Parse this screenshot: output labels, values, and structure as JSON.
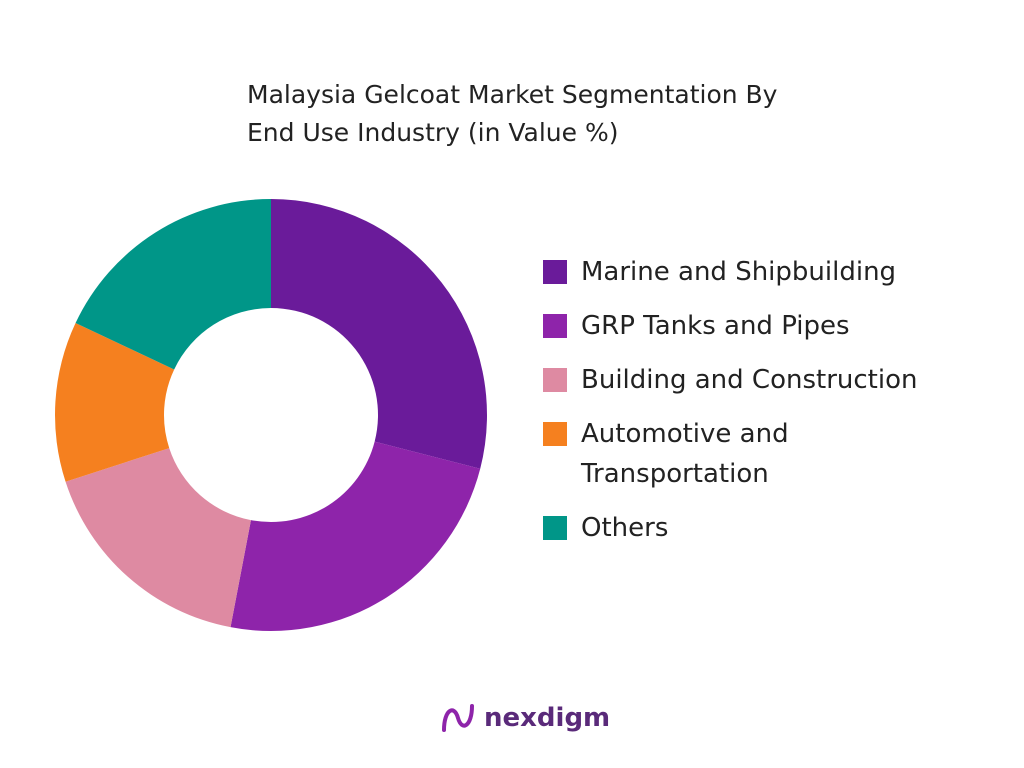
{
  "chart_data": {
    "type": "donut",
    "title": "Malaysia Gelcoat Market Segmentation By End Use Industry (in Value %)",
    "categories": [
      "Marine and Shipbuilding",
      "GRP Tanks and Pipes",
      "Building and Construction",
      "Automotive and Transportation",
      "Others"
    ],
    "values": [
      29,
      24,
      17,
      12,
      18
    ],
    "colors": [
      "#6a1b9a",
      "#8e24aa",
      "#de8aa2",
      "#f5801f",
      "#009688"
    ],
    "legend": "right"
  },
  "logo": "nexdigm"
}
